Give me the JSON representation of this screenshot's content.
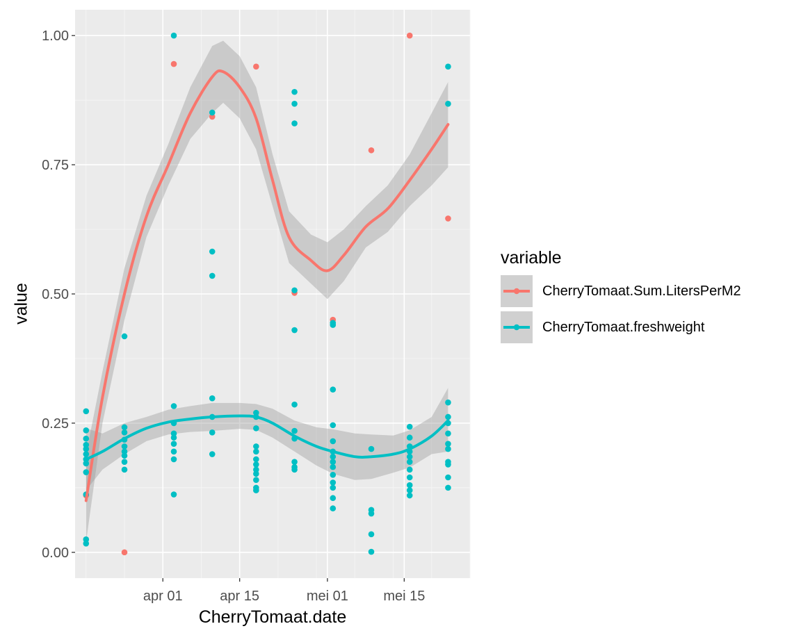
{
  "chart_data": {
    "type": "scatter",
    "xlabel": "CherryTomaat.date",
    "ylabel": "value",
    "x_ticks": [
      "apr 01",
      "apr 15",
      "mei 01",
      "mei 15"
    ],
    "x_tick_dates": [
      "04-01",
      "04-15",
      "05-01",
      "05-15"
    ],
    "y_ticks": [
      "0.00",
      "0.25",
      "0.50",
      "0.75",
      "1.00"
    ],
    "y_tick_values": [
      0,
      0.25,
      0.5,
      0.75,
      1.0
    ],
    "xlim": [
      "03-16",
      "05-27"
    ],
    "ylim": [
      -0.05,
      1.05
    ],
    "grid": true,
    "legend": {
      "title": "variable",
      "position": "right"
    },
    "series": [
      {
        "name": "CherryTomaat.Sum.LitersPerM2",
        "color": "#F8766D",
        "points": [
          [
            "03-18",
            0.11
          ],
          [
            "03-25",
            0.0
          ],
          [
            "04-03",
            0.945
          ],
          [
            "04-10",
            0.843
          ],
          [
            "04-18",
            0.94
          ],
          [
            "04-25",
            0.502
          ],
          [
            "05-02",
            0.45
          ],
          [
            "05-09",
            0.778
          ],
          [
            "05-16",
            1.0
          ],
          [
            "05-23",
            0.646
          ]
        ],
        "smooth": [
          [
            "03-18",
            0.1
          ],
          [
            "03-21",
            0.3
          ],
          [
            "03-25",
            0.5
          ],
          [
            "03-29",
            0.65
          ],
          [
            "04-02",
            0.75
          ],
          [
            "04-06",
            0.85
          ],
          [
            "04-10",
            0.92
          ],
          [
            "04-12",
            0.93
          ],
          [
            "04-15",
            0.9
          ],
          [
            "04-18",
            0.84
          ],
          [
            "04-21",
            0.72
          ],
          [
            "04-24",
            0.61
          ],
          [
            "04-28",
            0.565
          ],
          [
            "05-01",
            0.545
          ],
          [
            "05-04",
            0.575
          ],
          [
            "05-08",
            0.63
          ],
          [
            "05-12",
            0.665
          ],
          [
            "05-16",
            0.72
          ],
          [
            "05-20",
            0.78
          ],
          [
            "05-23",
            0.828
          ]
        ],
        "band": [
          [
            "03-18",
            0.02,
            0.19
          ],
          [
            "03-21",
            0.25,
            0.35
          ],
          [
            "03-25",
            0.45,
            0.55
          ],
          [
            "03-29",
            0.61,
            0.69
          ],
          [
            "04-02",
            0.71,
            0.79
          ],
          [
            "04-06",
            0.8,
            0.9
          ],
          [
            "04-10",
            0.85,
            0.98
          ],
          [
            "04-12",
            0.87,
            0.99
          ],
          [
            "04-15",
            0.84,
            0.96
          ],
          [
            "04-18",
            0.78,
            0.9
          ],
          [
            "04-21",
            0.67,
            0.77
          ],
          [
            "04-24",
            0.56,
            0.66
          ],
          [
            "04-28",
            0.52,
            0.615
          ],
          [
            "05-01",
            0.49,
            0.6
          ],
          [
            "05-04",
            0.525,
            0.625
          ],
          [
            "05-08",
            0.59,
            0.67
          ],
          [
            "05-12",
            0.62,
            0.71
          ],
          [
            "05-16",
            0.67,
            0.77
          ],
          [
            "05-20",
            0.71,
            0.85
          ],
          [
            "05-23",
            0.745,
            0.91
          ]
        ]
      },
      {
        "name": "CherryTomaat.freshweight",
        "color": "#00BFC4",
        "points": [
          [
            "03-18",
            0.273
          ],
          [
            "03-18",
            0.236
          ],
          [
            "03-18",
            0.22
          ],
          [
            "03-18",
            0.208
          ],
          [
            "03-18",
            0.2
          ],
          [
            "03-18",
            0.19
          ],
          [
            "03-18",
            0.18
          ],
          [
            "03-18",
            0.172
          ],
          [
            "03-18",
            0.155
          ],
          [
            "03-18",
            0.112
          ],
          [
            "03-18",
            0.025
          ],
          [
            "03-18",
            0.017
          ],
          [
            "03-25",
            0.418
          ],
          [
            "03-25",
            0.242
          ],
          [
            "03-25",
            0.232
          ],
          [
            "03-25",
            0.218
          ],
          [
            "03-25",
            0.205
          ],
          [
            "03-25",
            0.195
          ],
          [
            "03-25",
            0.187
          ],
          [
            "03-25",
            0.175
          ],
          [
            "03-25",
            0.16
          ],
          [
            "04-03",
            1.0
          ],
          [
            "04-03",
            0.283
          ],
          [
            "04-03",
            0.25
          ],
          [
            "04-03",
            0.23
          ],
          [
            "04-03",
            0.222
          ],
          [
            "04-03",
            0.21
          ],
          [
            "04-03",
            0.195
          ],
          [
            "04-03",
            0.18
          ],
          [
            "04-03",
            0.112
          ],
          [
            "04-10",
            0.851
          ],
          [
            "04-10",
            0.582
          ],
          [
            "04-10",
            0.535
          ],
          [
            "04-10",
            0.298
          ],
          [
            "04-10",
            0.262
          ],
          [
            "04-10",
            0.232
          ],
          [
            "04-10",
            0.19
          ],
          [
            "04-18",
            0.27
          ],
          [
            "04-18",
            0.262
          ],
          [
            "04-18",
            0.24
          ],
          [
            "04-18",
            0.205
          ],
          [
            "04-18",
            0.195
          ],
          [
            "04-18",
            0.18
          ],
          [
            "04-18",
            0.17
          ],
          [
            "04-18",
            0.16
          ],
          [
            "04-18",
            0.152
          ],
          [
            "04-18",
            0.14
          ],
          [
            "04-18",
            0.125
          ],
          [
            "04-18",
            0.12
          ],
          [
            "04-25",
            0.891
          ],
          [
            "04-25",
            0.868
          ],
          [
            "04-25",
            0.83
          ],
          [
            "04-25",
            0.507
          ],
          [
            "04-25",
            0.43
          ],
          [
            "04-25",
            0.286
          ],
          [
            "04-25",
            0.235
          ],
          [
            "04-25",
            0.22
          ],
          [
            "04-25",
            0.175
          ],
          [
            "04-25",
            0.165
          ],
          [
            "04-25",
            0.16
          ],
          [
            "05-02",
            0.444
          ],
          [
            "05-02",
            0.44
          ],
          [
            "05-02",
            0.315
          ],
          [
            "05-02",
            0.246
          ],
          [
            "05-02",
            0.215
          ],
          [
            "05-02",
            0.195
          ],
          [
            "05-02",
            0.185
          ],
          [
            "05-02",
            0.175
          ],
          [
            "05-02",
            0.165
          ],
          [
            "05-02",
            0.15
          ],
          [
            "05-02",
            0.135
          ],
          [
            "05-02",
            0.125
          ],
          [
            "05-02",
            0.105
          ],
          [
            "05-02",
            0.085
          ],
          [
            "05-09",
            0.2
          ],
          [
            "05-09",
            0.082
          ],
          [
            "05-09",
            0.075
          ],
          [
            "05-09",
            0.035
          ],
          [
            "05-09",
            0.001
          ],
          [
            "05-16",
            0.243
          ],
          [
            "05-16",
            0.222
          ],
          [
            "05-16",
            0.205
          ],
          [
            "05-16",
            0.195
          ],
          [
            "05-16",
            0.185
          ],
          [
            "05-16",
            0.175
          ],
          [
            "05-16",
            0.16
          ],
          [
            "05-16",
            0.145
          ],
          [
            "05-16",
            0.13
          ],
          [
            "05-16",
            0.12
          ],
          [
            "05-16",
            0.11
          ],
          [
            "05-23",
            0.94
          ],
          [
            "05-23",
            0.868
          ],
          [
            "05-23",
            0.29
          ],
          [
            "05-23",
            0.262
          ],
          [
            "05-23",
            0.25
          ],
          [
            "05-23",
            0.23
          ],
          [
            "05-23",
            0.21
          ],
          [
            "05-23",
            0.2
          ],
          [
            "05-23",
            0.175
          ],
          [
            "05-23",
            0.17
          ],
          [
            "05-23",
            0.145
          ],
          [
            "05-23",
            0.125
          ]
        ],
        "smooth": [
          [
            "03-18",
            0.18
          ],
          [
            "03-21",
            0.195
          ],
          [
            "03-25",
            0.22
          ],
          [
            "03-29",
            0.24
          ],
          [
            "04-02",
            0.252
          ],
          [
            "04-06",
            0.258
          ],
          [
            "04-10",
            0.262
          ],
          [
            "04-15",
            0.264
          ],
          [
            "04-18",
            0.262
          ],
          [
            "04-21",
            0.25
          ],
          [
            "04-25",
            0.225
          ],
          [
            "04-29",
            0.205
          ],
          [
            "05-02",
            0.195
          ],
          [
            "05-06",
            0.185
          ],
          [
            "05-09",
            0.185
          ],
          [
            "05-13",
            0.19
          ],
          [
            "05-16",
            0.2
          ],
          [
            "05-20",
            0.225
          ],
          [
            "05-23",
            0.255
          ]
        ],
        "band": [
          [
            "03-18",
            0.12,
            0.24
          ],
          [
            "03-21",
            0.16,
            0.23
          ],
          [
            "03-25",
            0.19,
            0.25
          ],
          [
            "03-29",
            0.215,
            0.262
          ],
          [
            "04-02",
            0.228,
            0.276
          ],
          [
            "04-06",
            0.233,
            0.283
          ],
          [
            "04-10",
            0.235,
            0.289
          ],
          [
            "04-15",
            0.239,
            0.289
          ],
          [
            "04-18",
            0.237,
            0.287
          ],
          [
            "04-21",
            0.222,
            0.278
          ],
          [
            "04-25",
            0.195,
            0.255
          ],
          [
            "04-29",
            0.168,
            0.242
          ],
          [
            "05-02",
            0.152,
            0.238
          ],
          [
            "05-06",
            0.14,
            0.23
          ],
          [
            "05-09",
            0.142,
            0.228
          ],
          [
            "05-13",
            0.154,
            0.226
          ],
          [
            "05-16",
            0.164,
            0.236
          ],
          [
            "05-20",
            0.19,
            0.262
          ],
          [
            "05-23",
            0.195,
            0.318
          ]
        ]
      }
    ]
  }
}
